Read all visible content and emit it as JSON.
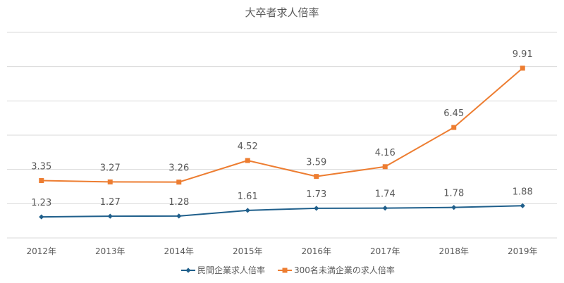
{
  "chart_data": {
    "type": "line",
    "title": "大卒者求人倍率",
    "categories": [
      "2012年",
      "2013年",
      "2014年",
      "2015年",
      "2016年",
      "2017年",
      "2018年",
      "2019年"
    ],
    "series": [
      {
        "name": "民間企業求人倍率",
        "values": [
          1.23,
          1.27,
          1.28,
          1.61,
          1.73,
          1.74,
          1.78,
          1.88
        ],
        "labels": [
          "1.23",
          "1.27",
          "1.28",
          "1.61",
          "1.73",
          "1.74",
          "1.78",
          "1.88"
        ],
        "color": "#1f5f8b",
        "marker": "diamond"
      },
      {
        "name": "300名未満企業の求人倍率",
        "values": [
          3.35,
          3.27,
          3.26,
          4.52,
          3.59,
          4.16,
          6.45,
          9.91
        ],
        "labels": [
          "3.35",
          "3.27",
          "3.26",
          "4.52",
          "3.59",
          "4.16",
          "6.45",
          "9.91"
        ],
        "color": "#ed7d31",
        "marker": "square"
      }
    ],
    "xlabel": "",
    "ylabel": "",
    "ylim": [
      0,
      12
    ],
    "grid": true,
    "legend": "bottom"
  }
}
